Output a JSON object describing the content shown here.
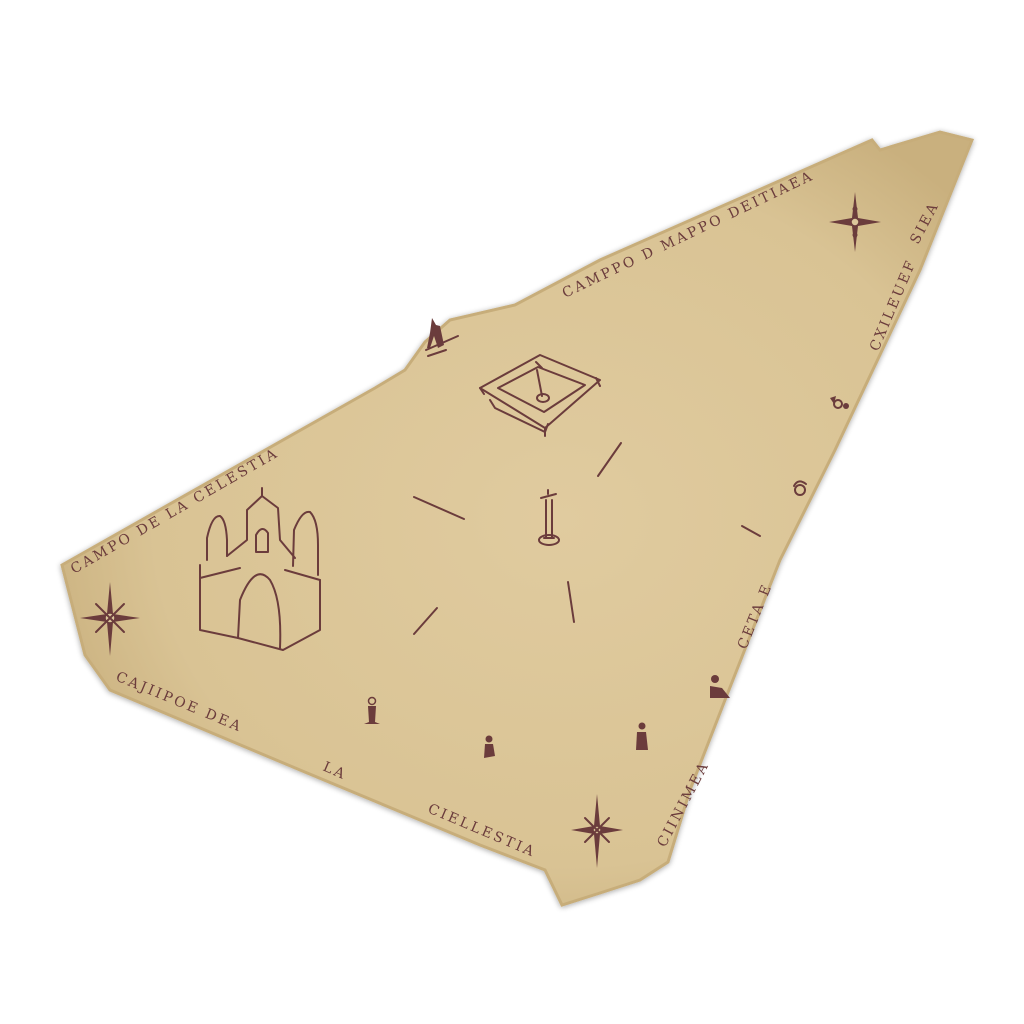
{
  "map": {
    "colors": {
      "background": "#ffffff",
      "parchment": "#dcc79b",
      "parchment_edge": "#c9b07e",
      "ink": "#6b3c3c"
    },
    "labels": {
      "top_edge": "CAMPPO D MAPPO DEITIAEA",
      "left_edge": "CAMPO DE LA CELESTIA",
      "bottom_edge_1": "CAJIIPOE DEA",
      "bottom_edge_2": "LA",
      "bottom_edge_3": "CIELLESTIA",
      "right_edge_top": "SIEA",
      "right_edge_upper": "CXILEUEF",
      "right_edge_middle": "CETA E",
      "right_edge_lower": "CIINIMEA"
    },
    "landmarks": [
      {
        "name": "church",
        "icon": "church-icon"
      },
      {
        "name": "fountain-well",
        "icon": "well-icon"
      },
      {
        "name": "central-column",
        "icon": "column-icon"
      },
      {
        "name": "standing-figure",
        "icon": "figure-icon"
      }
    ],
    "compass_roses": [
      "compass-rose-icon",
      "compass-rose-icon",
      "compass-rose-icon"
    ]
  }
}
